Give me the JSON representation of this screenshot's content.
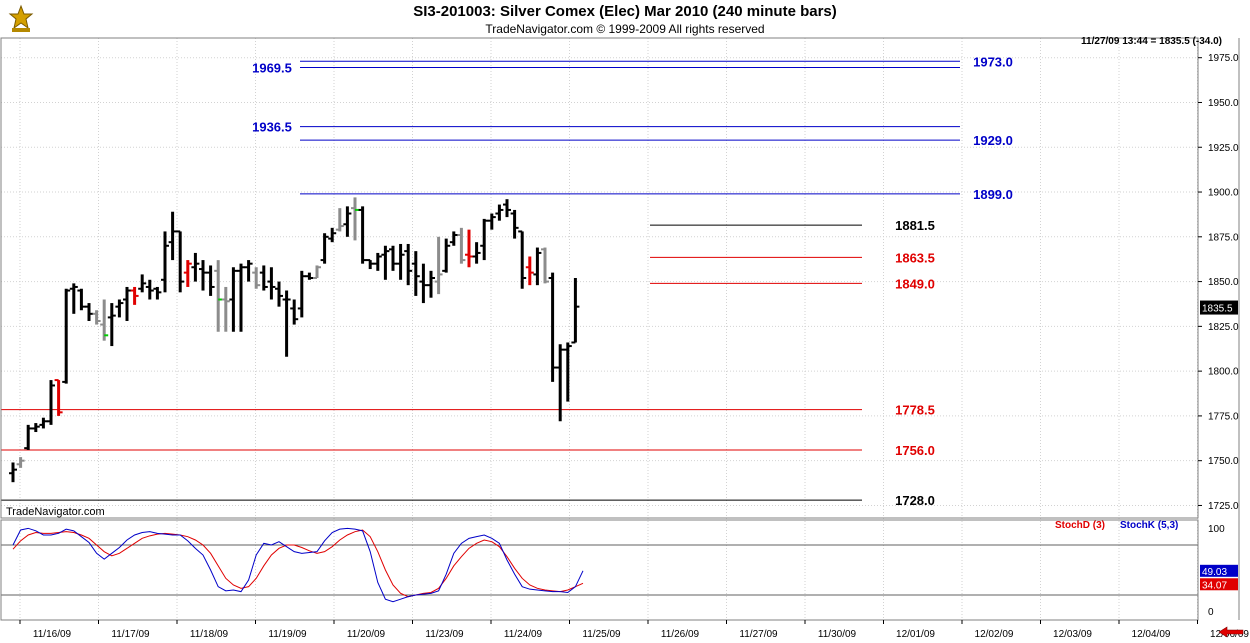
{
  "header": {
    "title": "SI3-201003:  Silver Comex (Elec) Mar 2010  (240 minute bars)",
    "subtitle": "TradeNavigator.com © 1999-2009 All rights reserved",
    "readout": "11/27/09 13:44 = 1835.5 (-34.0)",
    "watermark": "TradeNavigator.com",
    "logo_icon": "trade-navigator-logo-icon"
  },
  "colors": {
    "up_bar": "#000000",
    "down_bar": "#000000",
    "highlight_red": "#e00000",
    "highlight_gray": "#8c8c8c",
    "green_tick": "#00cc00",
    "blue_level": "#0000c8",
    "red_level": "#e00000",
    "black_level": "#000000"
  },
  "chart_data": {
    "type": "bar",
    "subtype": "ohlc",
    "price_axis": {
      "ylim": [
        1718,
        1986
      ],
      "ticks": [
        "1725.0",
        "1750.0",
        "1775.0",
        "1800.0",
        "1825.0",
        "1850.0",
        "1875.0",
        "1900.0",
        "1925.0",
        "1950.0",
        "1975.0"
      ],
      "last_price_label": "1835.5",
      "last_price": 1835.5
    },
    "x_axis": {
      "ticks": [
        "11/16/09",
        "11/17/09",
        "11/18/09",
        "11/19/09",
        "11/20/09",
        "11/23/09",
        "11/24/09",
        "11/25/09",
        "11/26/09",
        "11/27/09",
        "11/30/09",
        "12/01/09",
        "12/02/09",
        "12/03/09",
        "12/04/09",
        "12/06/09"
      ]
    },
    "grid": true,
    "bars": [
      [
        1743,
        1749,
        1738,
        1745,
        "n"
      ],
      [
        1748,
        1752,
        1746,
        1750,
        "g"
      ],
      [
        1757,
        1770,
        1756,
        1768,
        "n"
      ],
      [
        1768,
        1771,
        1766,
        1769,
        "n"
      ],
      [
        1770,
        1774,
        1768,
        1772,
        "n"
      ],
      [
        1772,
        1795,
        1770,
        1792,
        "n"
      ],
      [
        1795,
        1795,
        1775,
        1777,
        "r"
      ],
      [
        1794,
        1846,
        1793,
        1845,
        "n"
      ],
      [
        1846,
        1849,
        1832,
        1847,
        "n"
      ],
      [
        1845,
        1846,
        1834,
        1836,
        "n"
      ],
      [
        1836,
        1838,
        1828,
        1832,
        "n"
      ],
      [
        1832,
        1834,
        1826,
        1828,
        "g"
      ],
      [
        1826,
        1840,
        1817,
        1820,
        "g"
      ],
      [
        1830,
        1838,
        1814,
        1831,
        "n"
      ],
      [
        1836,
        1840,
        1830,
        1838,
        "n"
      ],
      [
        1840,
        1847,
        1828,
        1845,
        "n"
      ],
      [
        1845,
        1847,
        1837,
        1842,
        "r"
      ],
      [
        1846,
        1854,
        1844,
        1849,
        "n"
      ],
      [
        1847,
        1851,
        1840,
        1845,
        "n"
      ],
      [
        1846,
        1847,
        1840,
        1844,
        "n"
      ],
      [
        1851,
        1878,
        1844,
        1870,
        "n"
      ],
      [
        1872,
        1889,
        1862,
        1878,
        "n"
      ],
      [
        1878,
        1878,
        1844,
        1850,
        "n"
      ],
      [
        1855,
        1862,
        1847,
        1860,
        "r"
      ],
      [
        1858,
        1866,
        1850,
        1860,
        "n"
      ],
      [
        1857,
        1862,
        1845,
        1855,
        "n"
      ],
      [
        1855,
        1859,
        1842,
        1847,
        "n"
      ],
      [
        1856,
        1862,
        1822,
        1840,
        "g"
      ],
      [
        1840,
        1847,
        1822,
        1839,
        "g"
      ],
      [
        1840,
        1858,
        1822,
        1856,
        "n"
      ],
      [
        1856,
        1860,
        1822,
        1858,
        "n"
      ],
      [
        1858,
        1862,
        1850,
        1860,
        "n"
      ],
      [
        1855,
        1858,
        1846,
        1848,
        "g"
      ],
      [
        1855,
        1859,
        1845,
        1847,
        "n"
      ],
      [
        1850,
        1858,
        1840,
        1847,
        "n"
      ],
      [
        1846,
        1850,
        1836,
        1842,
        "n"
      ],
      [
        1840,
        1845,
        1808,
        1840,
        "n"
      ],
      [
        1835,
        1840,
        1826,
        1829,
        "n"
      ],
      [
        1835,
        1856,
        1830,
        1853,
        "n"
      ],
      [
        1853,
        1855,
        1851,
        1852,
        "n"
      ],
      [
        1852,
        1859,
        1852,
        1858,
        "g"
      ],
      [
        1862,
        1877,
        1860,
        1875,
        "n"
      ],
      [
        1874,
        1880,
        1872,
        1877,
        "n"
      ],
      [
        1879,
        1891,
        1878,
        1881,
        "g"
      ],
      [
        1882,
        1892,
        1875,
        1888,
        "n"
      ],
      [
        1891,
        1897,
        1873,
        1890,
        "g"
      ],
      [
        1890,
        1892,
        1860,
        1862,
        "n"
      ],
      [
        1862,
        1862,
        1857,
        1860,
        "n"
      ],
      [
        1860,
        1866,
        1856,
        1864,
        "n"
      ],
      [
        1865,
        1870,
        1851,
        1867,
        "n"
      ],
      [
        1868,
        1870,
        1856,
        1860,
        "n"
      ],
      [
        1860,
        1871,
        1851,
        1865,
        "n"
      ],
      [
        1867,
        1871,
        1848,
        1856,
        "n"
      ],
      [
        1860,
        1867,
        1842,
        1853,
        "n"
      ],
      [
        1850,
        1860,
        1838,
        1848,
        "n"
      ],
      [
        1848,
        1856,
        1841,
        1852,
        "n"
      ],
      [
        1850,
        1875,
        1843,
        1854,
        "g"
      ],
      [
        1856,
        1874,
        1855,
        1870,
        "n"
      ],
      [
        1872,
        1878,
        1870,
        1876,
        "n"
      ],
      [
        1876,
        1880,
        1860,
        1862,
        "g"
      ],
      [
        1865,
        1879,
        1858,
        1864,
        "r"
      ],
      [
        1864,
        1872,
        1860,
        1866,
        "n"
      ],
      [
        1870,
        1885,
        1862,
        1884,
        "n"
      ],
      [
        1884,
        1888,
        1879,
        1886,
        "n"
      ],
      [
        1888,
        1893,
        1884,
        1890,
        "n"
      ],
      [
        1893,
        1896,
        1886,
        1890,
        "n"
      ],
      [
        1888,
        1890,
        1874,
        1880,
        "n"
      ],
      [
        1878,
        1878,
        1846,
        1852,
        "n"
      ],
      [
        1858,
        1864,
        1848,
        1855,
        "r"
      ],
      [
        1854,
        1869,
        1848,
        1866,
        "n"
      ],
      [
        1868,
        1869,
        1849,
        1850,
        "g"
      ],
      [
        1852,
        1855,
        1794,
        1802,
        "n"
      ],
      [
        1802,
        1815,
        1772,
        1812,
        "n"
      ],
      [
        1812,
        1816,
        1783,
        1814,
        "n"
      ],
      [
        1816,
        1852,
        1816,
        1836,
        "n"
      ]
    ],
    "levels": [
      {
        "value": 1973.0,
        "label": "1973.0",
        "color": "blue",
        "extent": "left"
      },
      {
        "value": 1969.5,
        "label": "1969.5",
        "color": "blue",
        "extent": "left"
      },
      {
        "value": 1936.5,
        "label": "1936.5",
        "color": "blue",
        "extent": "left"
      },
      {
        "value": 1929.0,
        "label": "1929.0",
        "color": "blue",
        "extent": "left"
      },
      {
        "value": 1899.0,
        "label": "1899.0",
        "color": "blue",
        "extent": "left"
      },
      {
        "value": 1881.5,
        "label": "1881.5",
        "color": "black",
        "extent": "right"
      },
      {
        "value": 1863.5,
        "label": "1863.5",
        "color": "red",
        "extent": "right"
      },
      {
        "value": 1849.0,
        "label": "1849.0",
        "color": "red",
        "extent": "right"
      },
      {
        "value": 1778.5,
        "label": "1778.5",
        "color": "red",
        "extent": "full"
      },
      {
        "value": 1756.0,
        "label": "1756.0",
        "color": "red",
        "extent": "full"
      },
      {
        "value": 1728.0,
        "label": "1728.0",
        "color": "black",
        "extent": "full"
      }
    ],
    "stochastic": {
      "ylim": [
        -10,
        110
      ],
      "ticks": [
        "100",
        "0"
      ],
      "guides": [
        80,
        20
      ],
      "stochD": {
        "name": "StochD (3)",
        "last_label": "34.07",
        "values": [
          75,
          85,
          92,
          95,
          94,
          94,
          95,
          96,
          95,
          92,
          88,
          80,
          72,
          67,
          70,
          76,
          82,
          88,
          91,
          93,
          94,
          93,
          92,
          90,
          86,
          80,
          70,
          55,
          40,
          32,
          28,
          30,
          40,
          55,
          68,
          76,
          80,
          80,
          77,
          73,
          70,
          72,
          78,
          86,
          92,
          96,
          98,
          90,
          72,
          50,
          32,
          22,
          18,
          20,
          22,
          23,
          28,
          40,
          55,
          66,
          76,
          82,
          86,
          84,
          78,
          66,
          52,
          40,
          32,
          28,
          26,
          25,
          24,
          26,
          30,
          34.07
        ]
      },
      "stochK": {
        "name": "StochK (5,3)",
        "last_label": "49.03",
        "values": [
          80,
          98,
          100,
          97,
          92,
          92,
          94,
          99,
          97,
          90,
          83,
          70,
          63,
          70,
          77,
          86,
          92,
          95,
          96,
          94,
          93,
          92,
          92,
          85,
          76,
          68,
          50,
          30,
          25,
          26,
          24,
          38,
          68,
          82,
          80,
          84,
          78,
          72,
          70,
          71,
          72,
          85,
          95,
          99,
          100,
          99,
          97,
          72,
          35,
          15,
          12,
          15,
          18,
          20,
          21,
          22,
          25,
          45,
          70,
          82,
          88,
          90,
          92,
          88,
          82,
          62,
          45,
          30,
          27,
          26,
          25,
          24,
          24,
          23,
          30,
          49.03
        ]
      }
    }
  }
}
